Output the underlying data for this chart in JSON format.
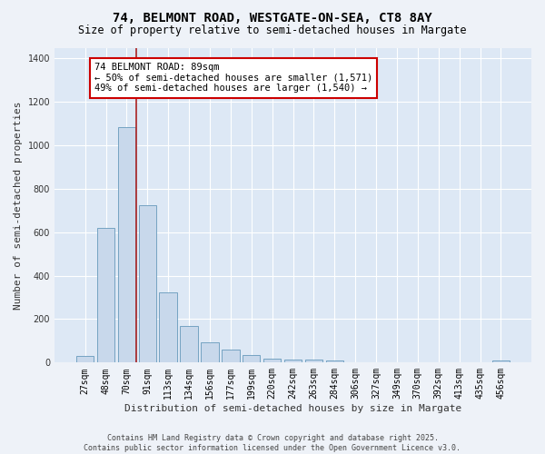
{
  "title_line1": "74, BELMONT ROAD, WESTGATE-ON-SEA, CT8 8AY",
  "title_line2": "Size of property relative to semi-detached houses in Margate",
  "xlabel": "Distribution of semi-detached houses by size in Margate",
  "ylabel": "Number of semi-detached properties",
  "categories": [
    "27sqm",
    "48sqm",
    "70sqm",
    "91sqm",
    "113sqm",
    "134sqm",
    "156sqm",
    "177sqm",
    "199sqm",
    "220sqm",
    "242sqm",
    "263sqm",
    "284sqm",
    "306sqm",
    "327sqm",
    "349sqm",
    "370sqm",
    "392sqm",
    "413sqm",
    "435sqm",
    "456sqm"
  ],
  "values": [
    30,
    620,
    1085,
    725,
    325,
    170,
    95,
    60,
    35,
    20,
    15,
    12,
    10,
    0,
    0,
    0,
    0,
    0,
    0,
    0,
    10
  ],
  "bar_color": "#c8d8eb",
  "bar_edge_color": "#6699bb",
  "vline_x_index": 2.45,
  "vline_color": "#aa2222",
  "annotation_text": "74 BELMONT ROAD: 89sqm\n← 50% of semi-detached houses are smaller (1,571)\n49% of semi-detached houses are larger (1,540) →",
  "annotation_box_facecolor": "white",
  "annotation_box_edgecolor": "#cc0000",
  "annotation_fontsize": 7.5,
  "plot_bg_color": "#dde8f5",
  "fig_bg_color": "#eef2f8",
  "grid_color": "white",
  "ylim": [
    0,
    1450
  ],
  "yticks": [
    0,
    200,
    400,
    600,
    800,
    1000,
    1200,
    1400
  ],
  "footnote": "Contains HM Land Registry data © Crown copyright and database right 2025.\nContains public sector information licensed under the Open Government Licence v3.0.",
  "title_fontsize": 10,
  "subtitle_fontsize": 8.5,
  "tick_fontsize": 7,
  "ylabel_fontsize": 8,
  "xlabel_fontsize": 8,
  "footnote_fontsize": 6
}
